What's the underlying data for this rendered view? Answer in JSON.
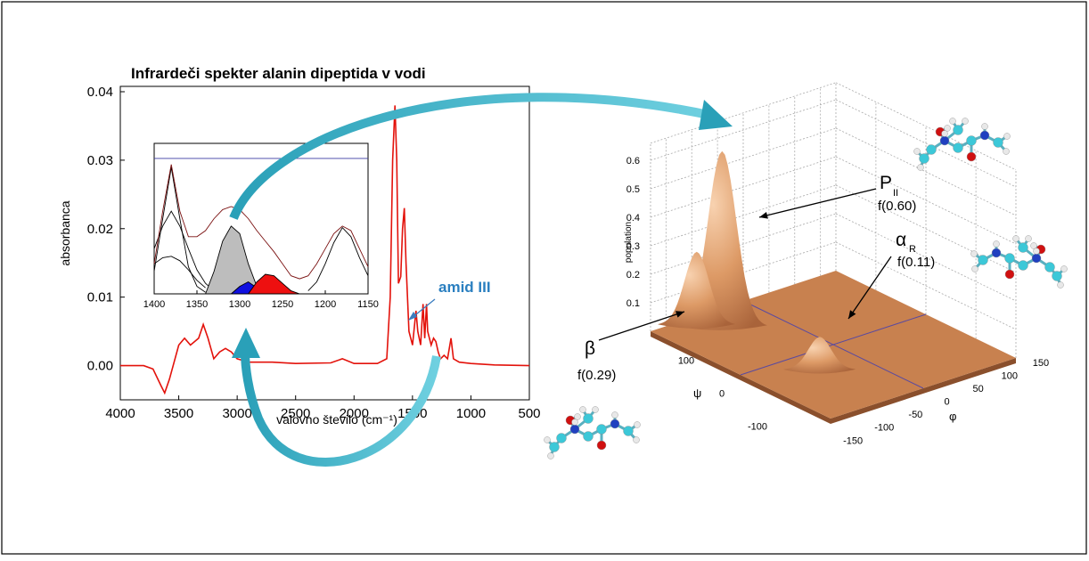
{
  "chart_data": [
    {
      "type": "line",
      "title": "Infrardeči spekter alanin dipeptida v vodi",
      "xlabel": "valovno število (cm⁻¹)",
      "ylabel": "absorbanca",
      "annotation": "amid III",
      "color": "#e3120b",
      "x": [
        4000,
        3800,
        3720,
        3650,
        3620,
        3580,
        3500,
        3450,
        3400,
        3330,
        3290,
        3250,
        3200,
        3150,
        3100,
        3050,
        3000,
        2900,
        2700,
        2500,
        2200,
        2100,
        2000,
        1800,
        1720,
        1690,
        1670,
        1650,
        1635,
        1620,
        1600,
        1585,
        1570,
        1555,
        1530,
        1500,
        1470,
        1455,
        1430,
        1410,
        1395,
        1380,
        1370,
        1340,
        1320,
        1300,
        1280,
        1260,
        1230,
        1200,
        1170,
        1150,
        1100,
        1000,
        800,
        500
      ],
      "values": [
        0,
        0,
        -0.0005,
        -0.003,
        -0.004,
        -0.002,
        0.003,
        0.004,
        0.003,
        0.004,
        0.006,
        0.004,
        0.001,
        0.002,
        0.0025,
        0.002,
        0.001,
        0.0005,
        0.0005,
        0.0003,
        0.0004,
        0.001,
        0.0003,
        0.0003,
        0.001,
        0.01,
        0.03,
        0.038,
        0.03,
        0.012,
        0.013,
        0.02,
        0.023,
        0.015,
        0.005,
        0.003,
        0.008,
        0.005,
        0.003,
        0.009,
        0.004,
        0.009,
        0.005,
        0.003,
        0.004,
        0.0035,
        0.002,
        0.001,
        0.0015,
        0.001,
        0.004,
        0.001,
        0.0005,
        0.0003,
        0.0001,
        0
      ],
      "xlim": [
        4000,
        500
      ],
      "ylim": [
        -0.005,
        0.04
      ],
      "xticks": [
        4000,
        3500,
        3000,
        2500,
        2000,
        1500,
        1000,
        500
      ],
      "yticks": [
        {
          "value": 0,
          "label": "0.00"
        },
        0.01,
        0.02,
        0.03,
        0.04
      ]
    },
    {
      "type": "area",
      "xlim": [
        1400,
        1150
      ],
      "ylim": [
        0,
        1
      ],
      "xticks": [
        1400,
        1350,
        1300,
        1250,
        1200,
        1150
      ],
      "series": [
        {
          "color": "#3a3aa0",
          "x": [
            1400,
            1150
          ],
          "values": [
            0.9,
            0.9
          ]
        },
        {
          "color": "#000000",
          "x": [
            1400,
            1390,
            1380,
            1370,
            1360,
            1350,
            1340
          ],
          "values": [
            0.15,
            0.5,
            0.84,
            0.5,
            0.18,
            0.05,
            0.01
          ]
        },
        {
          "color": "#000000",
          "x": [
            1400,
            1390,
            1380,
            1370,
            1360,
            1350,
            1340,
            1330,
            1320
          ],
          "values": [
            0.3,
            0.45,
            0.55,
            0.45,
            0.3,
            0.16,
            0.07,
            0.02,
            0
          ]
        },
        {
          "color": "#000000",
          "x": [
            1400,
            1390,
            1380,
            1370,
            1360,
            1350,
            1340
          ],
          "values": [
            0.2,
            0.24,
            0.25,
            0.22,
            0.16,
            0.09,
            0.04
          ]
        },
        {
          "color": "#000000",
          "fill": "#bdbdbd",
          "x": [
            1340,
            1330,
            1320,
            1310,
            1300,
            1290,
            1280,
            1270
          ],
          "values": [
            0,
            0.15,
            0.35,
            0.45,
            0.4,
            0.2,
            0.05,
            0
          ]
        },
        {
          "color": "#000000",
          "fill": "#1010e0",
          "x": [
            1310,
            1300,
            1290,
            1280,
            1270
          ],
          "values": [
            0,
            0.05,
            0.08,
            0.04,
            0
          ]
        },
        {
          "color": "#000000",
          "fill": "#ee1010",
          "x": [
            1290,
            1280,
            1270,
            1260,
            1250,
            1240,
            1230
          ],
          "values": [
            0,
            0.08,
            0.13,
            0.12,
            0.07,
            0.02,
            0
          ]
        },
        {
          "color": "#000000",
          "x": [
            1220,
            1210,
            1200,
            1190,
            1180,
            1170,
            1160,
            1150
          ],
          "values": [
            0.02,
            0.08,
            0.2,
            0.34,
            0.44,
            0.38,
            0.24,
            0.12
          ]
        },
        {
          "color": "#7a1010",
          "x": [
            1400,
            1390,
            1380,
            1370,
            1360,
            1350,
            1340,
            1330,
            1320,
            1310,
            1300,
            1290,
            1280,
            1270,
            1260,
            1250,
            1240,
            1230,
            1220,
            1210,
            1200,
            1190,
            1180,
            1170,
            1160,
            1150
          ],
          "values": [
            0.2,
            0.55,
            0.86,
            0.55,
            0.38,
            0.38,
            0.42,
            0.5,
            0.56,
            0.58,
            0.56,
            0.5,
            0.42,
            0.35,
            0.28,
            0.2,
            0.12,
            0.1,
            0.12,
            0.2,
            0.3,
            0.4,
            0.45,
            0.42,
            0.3,
            0.18
          ]
        }
      ]
    },
    {
      "type": "surface",
      "zlabel": "population",
      "xlabel": "φ",
      "ylabel": "ψ",
      "color": "#c8814f",
      "xlim": [
        -180,
        180
      ],
      "ylim": [
        -180,
        180
      ],
      "zlim": [
        0,
        0.6
      ],
      "xticks": [
        -150,
        -100,
        -50,
        0,
        50,
        100,
        150
      ],
      "yticks": [
        100,
        0,
        -100
      ],
      "zticks": [
        0.1,
        0.2,
        0.3,
        0.4,
        0.5,
        0.6
      ],
      "peaks": [
        {
          "label": "P",
          "sub": "II",
          "fraction": "f(0.60)",
          "phi": -75,
          "psi": 145,
          "z": 0.6
        },
        {
          "label": "β",
          "fraction": "f(0.29)",
          "phi": -100,
          "psi": 170,
          "z": 0.24
        },
        {
          "label": "α",
          "sub": "R",
          "fraction": "f(0.11)",
          "phi": -65,
          "psi": -40,
          "z": 0.1
        }
      ]
    }
  ]
}
